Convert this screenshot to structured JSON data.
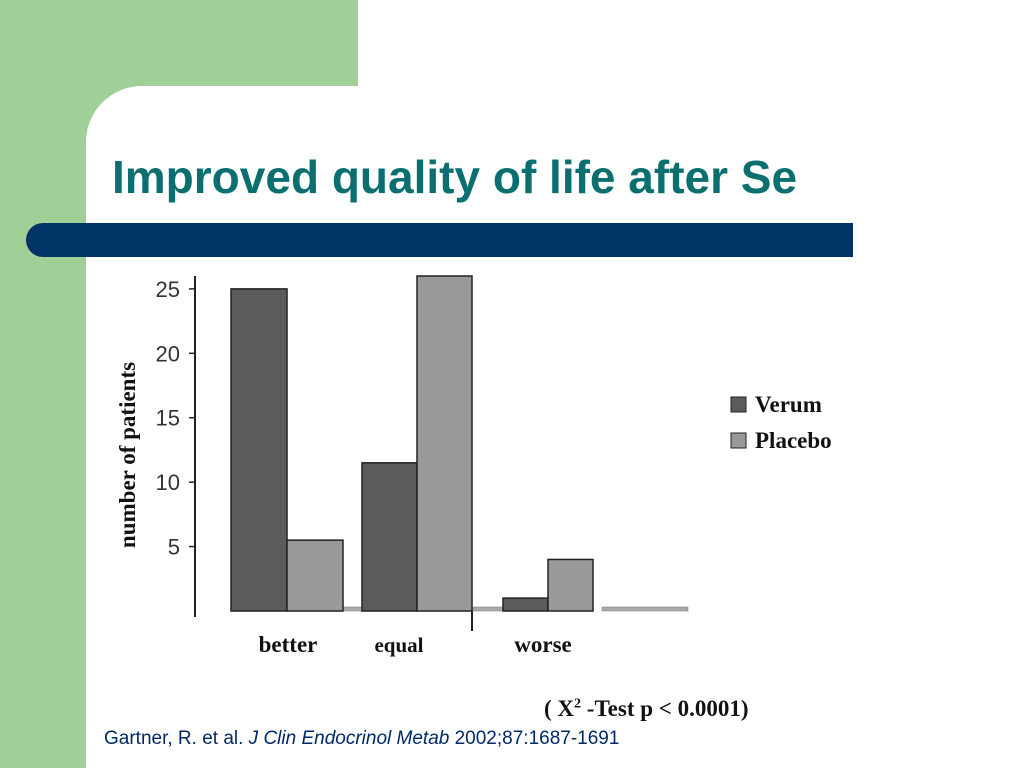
{
  "slide": {
    "title": "Improved quality of life after Se",
    "colors": {
      "background": "#a0cf98",
      "title": "#0b6f70",
      "bar": "#003366"
    }
  },
  "chart_data": {
    "type": "bar",
    "categories": [
      "better",
      "equal",
      "worse"
    ],
    "series": [
      {
        "name": "Verum",
        "color": "#5b5b5b",
        "values": [
          25,
          11.5,
          1
        ]
      },
      {
        "name": "Placebo",
        "color": "#999999",
        "values": [
          5.5,
          26,
          4
        ]
      }
    ],
    "ylabel": "number of patients",
    "yticks": [
      5,
      10,
      15,
      20,
      25
    ],
    "ylim": [
      0,
      26
    ],
    "legend_position": "right",
    "grid": false
  },
  "stat_note": {
    "prefix": "( X",
    "superscript": "2",
    "suffix": " -Test p < 0.0001)"
  },
  "citation": {
    "authors": "Gartner, R. et al. ",
    "journal": "J Clin Endocrinol Metab",
    "details": " 2002;87:1687-1691"
  }
}
